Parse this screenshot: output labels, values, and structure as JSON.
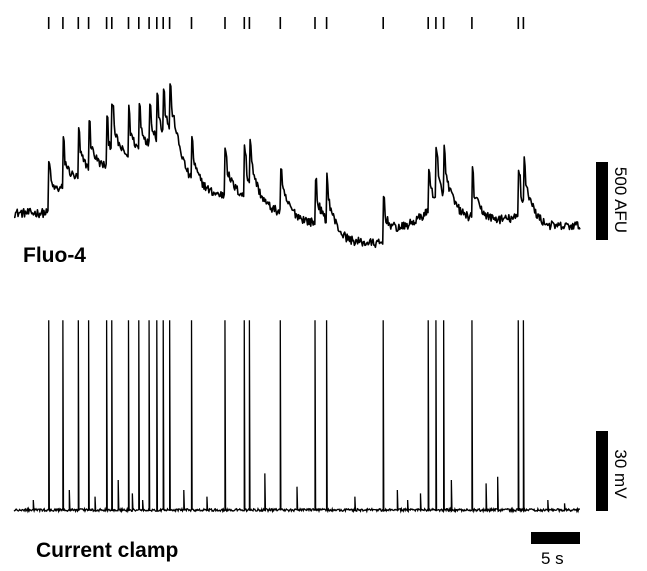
{
  "fluo_label": "Fluo-4",
  "clamp_label": "Current clamp",
  "scale_bars": {
    "fluorescence": "500 AFU",
    "voltage": "30 mV",
    "time": "5 s"
  },
  "colors": {
    "trace": "#000000",
    "background": "#ffffff"
  },
  "chart_data": {
    "type": "line",
    "x_unit": "s",
    "x_range": [
      0,
      44
    ],
    "spike_times": [
      2.7,
      3.8,
      5.0,
      5.8,
      7.2,
      7.6,
      8.9,
      9.7,
      10.5,
      11.1,
      11.6,
      12.1,
      13.8,
      16.4,
      17.9,
      18.3,
      20.7,
      23.4,
      24.3,
      28.7,
      32.2,
      32.8,
      33.4,
      35.6,
      39.2,
      39.6
    ],
    "series": [
      {
        "signal": "fluorescence",
        "unit": "AFU",
        "baseline": 0,
        "range": [
          -250,
          1150
        ],
        "anchors": [
          [
            0.0,
            0
          ],
          [
            2.6,
            0
          ],
          [
            4.0,
            280
          ],
          [
            6.0,
            520
          ],
          [
            8.5,
            750
          ],
          [
            11.0,
            900
          ],
          [
            12.5,
            1000
          ],
          [
            14.0,
            650
          ],
          [
            16.0,
            500
          ],
          [
            18.0,
            400
          ],
          [
            20.0,
            300
          ],
          [
            22.5,
            150
          ],
          [
            25.5,
            -50
          ],
          [
            28.0,
            -150
          ],
          [
            28.6,
            -180
          ],
          [
            30.0,
            -50
          ],
          [
            32.0,
            100
          ],
          [
            34.0,
            180
          ],
          [
            36.0,
            150
          ],
          [
            38.0,
            120
          ],
          [
            40.5,
            80
          ],
          [
            44.0,
            0
          ]
        ],
        "spike_amplitude": 480,
        "decay_tau_s": 0.9
      },
      {
        "signal": "membrane_potential",
        "unit": "mV",
        "baseline": 0,
        "range": [
          -5,
          75
        ],
        "spike_amplitude": 57,
        "subthreshold_event_times": [
          1.5,
          4.3,
          6.3,
          8.1,
          9.2,
          10.0,
          13.2,
          15.0,
          19.5,
          22.0,
          26.5,
          29.8,
          30.6,
          31.6,
          34.0,
          36.7,
          37.6,
          41.5,
          42.8
        ],
        "subthreshold_event_amplitudes": [
          3,
          6,
          4,
          9,
          5,
          3,
          6,
          4,
          11,
          7,
          4,
          6,
          3,
          5,
          9,
          8,
          10,
          3,
          2
        ]
      }
    ],
    "title": "",
    "xlabel": "",
    "ylabel": ""
  }
}
